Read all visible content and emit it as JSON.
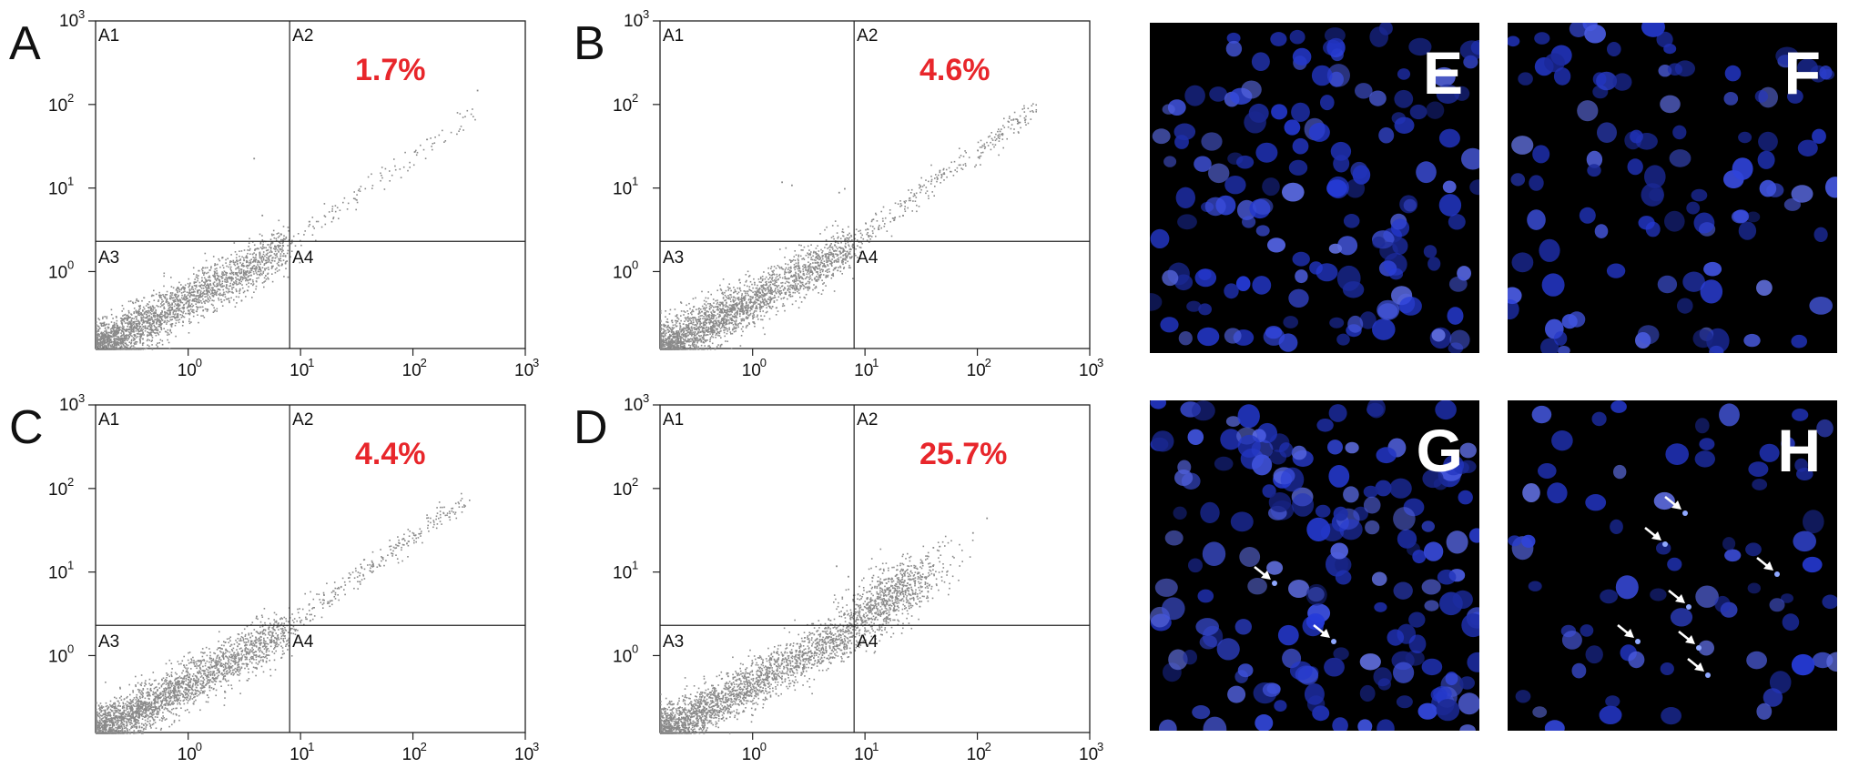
{
  "chart_data": [
    {
      "type": "scatter",
      "panel": "A",
      "percent_label": "1.7%",
      "quadrant_labels": [
        "A1",
        "A2",
        "A3",
        "A4"
      ],
      "x_scale": "log",
      "y_scale": "log",
      "xlim": [
        0.15,
        1000
      ],
      "ylim": [
        0.12,
        1000
      ],
      "x_ticks": [
        "10",
        "10",
        "10",
        "10"
      ],
      "x_tick_exponents": [
        "0",
        "1",
        "2",
        "3"
      ],
      "y_ticks": [
        "10",
        "10",
        "10"
      ],
      "y_tick_exponents": [
        "0",
        "1",
        "2"
      ],
      "y_top_tick": "10",
      "y_top_tick_exponent": "3",
      "gate": {
        "x": 8.0,
        "y": 2.3
      },
      "main_cluster": {
        "x_range": [
          0.15,
          7.5
        ],
        "y_range": [
          0.12,
          2.0
        ],
        "n": 2600
      },
      "upper_tail": {
        "x_range": [
          9,
          350
        ],
        "y_range": [
          2.5,
          80
        ],
        "n": 110
      },
      "scattered_points": [
        [
          3.8,
          23
        ],
        [
          4.5,
          4.8
        ],
        [
          370,
          150
        ]
      ]
    },
    {
      "type": "scatter",
      "panel": "B",
      "percent_label": "4.6%",
      "quadrant_labels": [
        "A1",
        "A2",
        "A3",
        "A4"
      ],
      "x_scale": "log",
      "y_scale": "log",
      "xlim": [
        0.15,
        1000
      ],
      "ylim": [
        0.12,
        1000
      ],
      "x_ticks": [
        "10",
        "10",
        "10",
        "10"
      ],
      "x_tick_exponents": [
        "0",
        "1",
        "2",
        "3"
      ],
      "y_ticks": [
        "10",
        "10",
        "10"
      ],
      "y_tick_exponents": [
        "0",
        "1",
        "2"
      ],
      "y_top_tick": "10",
      "y_top_tick_exponent": "3",
      "gate": {
        "x": 8.0,
        "y": 2.3
      },
      "main_cluster": {
        "x_range": [
          0.15,
          7.5
        ],
        "y_range": [
          0.12,
          2.0
        ],
        "n": 2600
      },
      "upper_tail": {
        "x_range": [
          8,
          320
        ],
        "y_range": [
          2.3,
          95
        ],
        "n": 280
      },
      "scattered_points": [
        [
          1.8,
          12
        ],
        [
          2.2,
          11
        ],
        [
          5.8,
          9
        ],
        [
          6.5,
          10
        ]
      ]
    },
    {
      "type": "scatter",
      "panel": "C",
      "percent_label": "4.4%",
      "quadrant_labels": [
        "A1",
        "A2",
        "A3",
        "A4"
      ],
      "x_scale": "log",
      "y_scale": "log",
      "xlim": [
        0.15,
        1000
      ],
      "ylim": [
        0.12,
        1000
      ],
      "x_ticks": [
        "10",
        "10",
        "10",
        "10"
      ],
      "x_tick_exponents": [
        "0",
        "1",
        "2",
        "3"
      ],
      "y_ticks": [
        "10",
        "10",
        "10"
      ],
      "y_tick_exponents": [
        "0",
        "1",
        "2"
      ],
      "y_top_tick": "10",
      "y_top_tick_exponent": "3",
      "gate": {
        "x": 8.0,
        "y": 2.3
      },
      "main_cluster": {
        "x_range": [
          0.15,
          7.5
        ],
        "y_range": [
          0.12,
          2.0
        ],
        "n": 2600
      },
      "upper_tail": {
        "x_range": [
          8,
          280
        ],
        "y_range": [
          2.3,
          75
        ],
        "n": 260
      },
      "scattered_points": [
        [
          4.0,
          3.0
        ],
        [
          6.5,
          2.8
        ]
      ]
    },
    {
      "type": "scatter",
      "panel": "D",
      "percent_label": "25.7%",
      "quadrant_labels": [
        "A1",
        "A2",
        "A3",
        "A4"
      ],
      "x_scale": "log",
      "y_scale": "log",
      "xlim": [
        0.15,
        1000
      ],
      "ylim": [
        0.12,
        1000
      ],
      "x_ticks": [
        "10",
        "10",
        "10",
        "10"
      ],
      "x_tick_exponents": [
        "0",
        "1",
        "2",
        "3"
      ],
      "y_ticks": [
        "10",
        "10",
        "10"
      ],
      "y_tick_exponents": [
        "0",
        "1",
        "2"
      ],
      "y_top_tick": "10",
      "y_top_tick_exponent": "3",
      "gate": {
        "x": 8.0,
        "y": 2.3
      },
      "main_cluster": {
        "x_range": [
          0.15,
          7.5
        ],
        "y_range": [
          0.12,
          2.0
        ],
        "n": 2400
      },
      "upper_tail": {
        "x_range": [
          6,
          60
        ],
        "y_range": [
          1.8,
          18
        ],
        "n": 900
      },
      "scattered_points": [
        [
          5.5,
          12
        ],
        [
          7.0,
          9
        ],
        [
          40,
          20
        ],
        [
          120,
          45
        ],
        [
          90,
          30
        ]
      ]
    }
  ],
  "micrographs": [
    {
      "label": "E",
      "arrows": 0
    },
    {
      "label": "F",
      "arrows": 0
    },
    {
      "label": "G",
      "arrows": 2
    },
    {
      "label": "H",
      "arrows": 7
    }
  ],
  "colors": {
    "dot": "#8a8a8a",
    "percent": "#e8262b",
    "nucleus": "#2b3aa8",
    "background": "#000000",
    "arrow": "#ffffff"
  }
}
